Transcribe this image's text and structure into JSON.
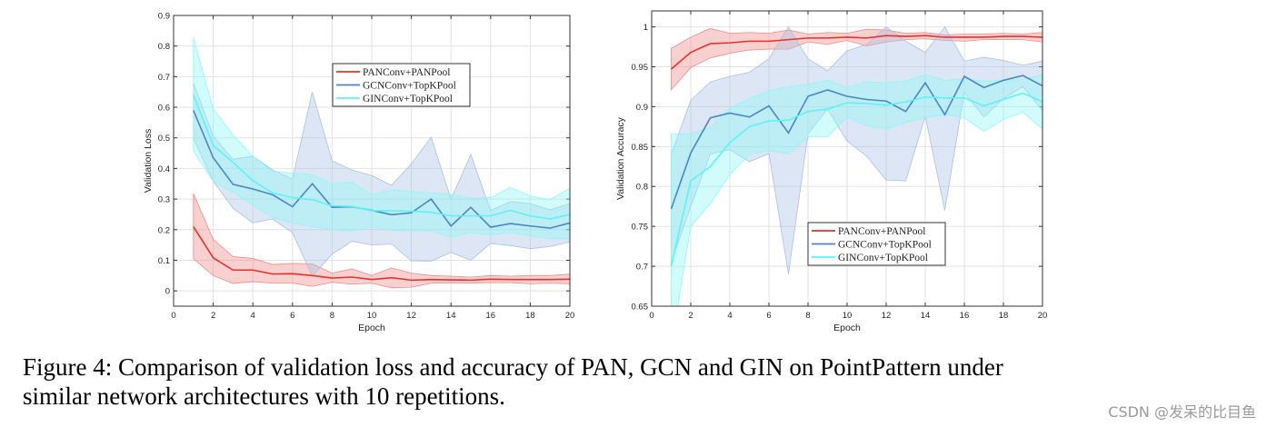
{
  "colors": {
    "PAN": "#e8312a",
    "GCN": "#4a86c8",
    "GIN": "#5ff2f5",
    "PAN_fill": "#f08a8a",
    "GCN_fill": "#a9c1e3",
    "GIN_fill": "#8ef7f7",
    "grid": "#e2e2e2"
  },
  "chart_data": [
    {
      "type": "line",
      "xlabel": "Epoch",
      "ylabel": "Validation Loss",
      "xlim": [
        0,
        20
      ],
      "ylim": [
        -0.05,
        0.9
      ],
      "xticks": [
        "0",
        "2",
        "4",
        "6",
        "8",
        "10",
        "12",
        "14",
        "16",
        "18",
        "20"
      ],
      "yticks": [
        "0",
        "0.1",
        "0.2",
        "0.3",
        "0.4",
        "0.5",
        "0.6",
        "0.7",
        "0.8",
        "0.9"
      ],
      "grid": true,
      "legend_position": "top-center",
      "x": [
        1,
        2,
        3,
        4,
        5,
        6,
        7,
        8,
        9,
        10,
        11,
        12,
        13,
        14,
        15,
        16,
        17,
        18,
        19,
        20
      ],
      "series": [
        {
          "name": "PANConv+PANPool",
          "key": "PAN",
          "values": [
            0.21,
            0.108,
            0.068,
            0.068,
            0.055,
            0.056,
            0.05,
            0.042,
            0.045,
            0.037,
            0.043,
            0.035,
            0.037,
            0.036,
            0.035,
            0.038,
            0.037,
            0.037,
            0.037,
            0.038
          ],
          "upper": [
            0.318,
            0.168,
            0.112,
            0.106,
            0.086,
            0.09,
            0.088,
            0.058,
            0.072,
            0.05,
            0.075,
            0.058,
            0.05,
            0.048,
            0.045,
            0.05,
            0.048,
            0.05,
            0.05,
            0.055
          ],
          "lower": [
            0.105,
            0.05,
            0.024,
            0.03,
            0.025,
            0.025,
            0.015,
            0.028,
            0.022,
            0.025,
            0.01,
            0.012,
            0.025,
            0.025,
            0.025,
            0.027,
            0.027,
            0.023,
            0.025,
            0.023
          ]
        },
        {
          "name": "GCNConv+TopKPool",
          "key": "GCN",
          "values": [
            0.59,
            0.435,
            0.348,
            0.333,
            0.314,
            0.275,
            0.35,
            0.273,
            0.275,
            0.263,
            0.249,
            0.255,
            0.3,
            0.212,
            0.273,
            0.208,
            0.22,
            0.212,
            0.205,
            0.222
          ],
          "upper": [
            0.68,
            0.505,
            0.43,
            0.44,
            0.395,
            0.365,
            0.65,
            0.425,
            0.395,
            0.377,
            0.345,
            0.415,
            0.502,
            0.3,
            0.445,
            0.262,
            0.292,
            0.285,
            0.265,
            0.285
          ],
          "lower": [
            0.497,
            0.358,
            0.27,
            0.222,
            0.235,
            0.19,
            0.048,
            0.12,
            0.162,
            0.15,
            0.153,
            0.098,
            0.097,
            0.126,
            0.1,
            0.155,
            0.148,
            0.138,
            0.145,
            0.16
          ]
        },
        {
          "name": "GINConv+TopKPool",
          "key": "GIN",
          "values": [
            0.64,
            0.475,
            0.42,
            0.36,
            0.32,
            0.305,
            0.298,
            0.278,
            0.276,
            0.262,
            0.262,
            0.26,
            0.257,
            0.245,
            0.245,
            0.245,
            0.263,
            0.245,
            0.235,
            0.25
          ],
          "upper": [
            0.826,
            0.595,
            0.51,
            0.44,
            0.39,
            0.385,
            0.38,
            0.35,
            0.355,
            0.315,
            0.33,
            0.325,
            0.32,
            0.315,
            0.303,
            0.305,
            0.338,
            0.31,
            0.298,
            0.335
          ],
          "lower": [
            0.457,
            0.358,
            0.322,
            0.28,
            0.24,
            0.222,
            0.21,
            0.2,
            0.195,
            0.21,
            0.198,
            0.197,
            0.195,
            0.175,
            0.19,
            0.183,
            0.19,
            0.18,
            0.17,
            0.17
          ]
        }
      ]
    },
    {
      "type": "line",
      "xlabel": "Epoch",
      "ylabel": "Validation Accuracy",
      "xlim": [
        0,
        20
      ],
      "ylim": [
        0.65,
        1.02
      ],
      "xticks": [
        "0",
        "2",
        "4",
        "6",
        "8",
        "10",
        "12",
        "14",
        "16",
        "18",
        "20"
      ],
      "yticks": [
        "0.65",
        "0.7",
        "0.75",
        "0.8",
        "0.85",
        "0.9",
        "0.95",
        "1"
      ],
      "grid": true,
      "legend_position": "bottom-center",
      "x": [
        1,
        2,
        3,
        4,
        5,
        6,
        7,
        8,
        9,
        10,
        11,
        12,
        13,
        14,
        15,
        16,
        17,
        18,
        19,
        20
      ],
      "series": [
        {
          "name": "PANConv+PANPool",
          "key": "PAN",
          "values": [
            0.947,
            0.968,
            0.979,
            0.98,
            0.982,
            0.982,
            0.984,
            0.986,
            0.986,
            0.987,
            0.986,
            0.989,
            0.988,
            0.989,
            0.987,
            0.987,
            0.987,
            0.988,
            0.988,
            0.987
          ],
          "upper": [
            0.973,
            0.987,
            0.998,
            0.992,
            0.993,
            0.992,
            0.996,
            0.991,
            0.993,
            0.992,
            0.997,
            0.996,
            0.992,
            0.993,
            0.99,
            0.991,
            0.991,
            0.992,
            0.991,
            0.993
          ],
          "lower": [
            0.921,
            0.949,
            0.961,
            0.967,
            0.971,
            0.972,
            0.972,
            0.981,
            0.978,
            0.983,
            0.976,
            0.981,
            0.984,
            0.985,
            0.983,
            0.982,
            0.984,
            0.984,
            0.984,
            0.981
          ]
        },
        {
          "name": "GCNConv+TopKPool",
          "key": "GCN",
          "values": [
            0.772,
            0.842,
            0.886,
            0.892,
            0.887,
            0.901,
            0.867,
            0.913,
            0.921,
            0.913,
            0.909,
            0.907,
            0.894,
            0.93,
            0.89,
            0.938,
            0.924,
            0.933,
            0.939,
            0.926
          ],
          "upper": [
            0.84,
            0.908,
            0.931,
            0.938,
            0.943,
            0.96,
            1.0,
            0.96,
            0.945,
            0.97,
            0.978,
            1.0,
            0.982,
            0.968,
            1.0,
            0.957,
            0.962,
            0.958,
            0.952,
            0.957
          ],
          "lower": [
            0.705,
            0.775,
            0.841,
            0.846,
            0.831,
            0.841,
            0.69,
            0.866,
            0.897,
            0.857,
            0.838,
            0.808,
            0.807,
            0.888,
            0.77,
            0.918,
            0.887,
            0.91,
            0.925,
            0.895
          ]
        },
        {
          "name": "GINConv+TopKPool",
          "key": "GIN",
          "values": [
            0.7,
            0.807,
            0.825,
            0.855,
            0.875,
            0.882,
            0.883,
            0.894,
            0.897,
            0.905,
            0.904,
            0.902,
            0.906,
            0.912,
            0.911,
            0.911,
            0.901,
            0.909,
            0.917,
            0.906
          ],
          "upper": [
            0.866,
            0.866,
            0.874,
            0.898,
            0.91,
            0.92,
            0.925,
            0.928,
            0.933,
            0.924,
            0.931,
            0.93,
            0.932,
            0.94,
            0.933,
            0.935,
            0.932,
            0.933,
            0.934,
            0.94
          ],
          "lower": [
            0.6,
            0.75,
            0.778,
            0.815,
            0.84,
            0.845,
            0.841,
            0.862,
            0.862,
            0.887,
            0.876,
            0.872,
            0.88,
            0.886,
            0.89,
            0.886,
            0.869,
            0.884,
            0.893,
            0.872
          ]
        }
      ]
    }
  ],
  "caption": {
    "line1": "Figure 4: Comparison of validation loss and accuracy of PAN, GCN and GIN on PointPattern under",
    "line2": "similar network architectures with 10 repetitions."
  },
  "watermark": "CSDN @发呆的比目鱼"
}
